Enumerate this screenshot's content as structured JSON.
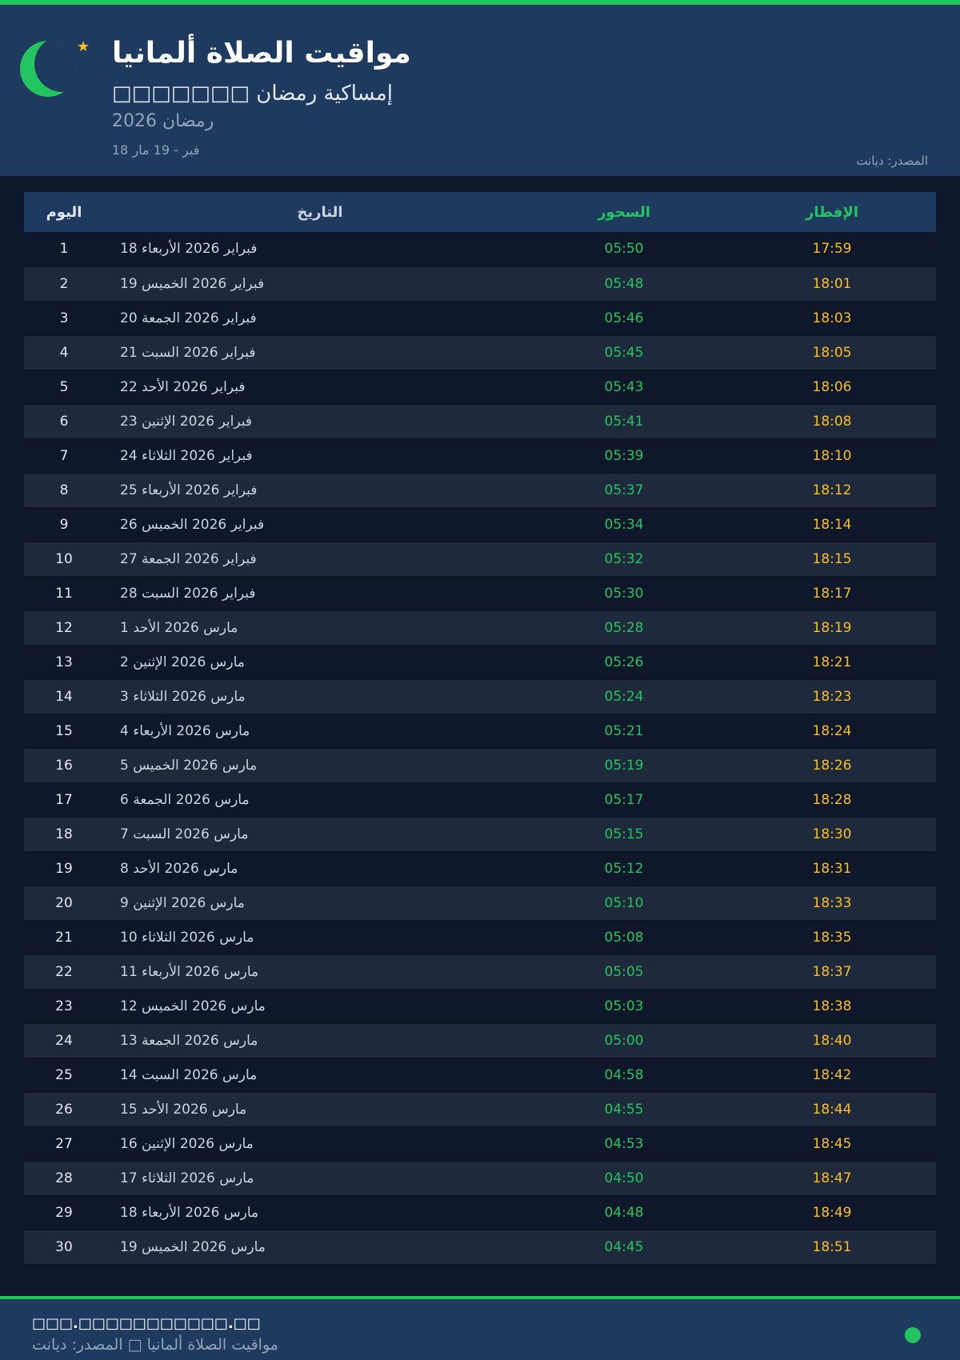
{
  "header": {
    "title": "مواقيت الصلاة ألمانيا",
    "subtitle": "□□□□□□□ إمساكية رمضان",
    "year": "رمضان 2026",
    "range": "18 فبر - 19 مار",
    "source": "المصدر: ديانت",
    "icons": [
      "crescent-moon-icon",
      "star-icon"
    ]
  },
  "colors": {
    "accent": "#22c55e",
    "iftar": "#fbbf24",
    "header_bg": "#1e3a5f",
    "page_bg": "#0f172a"
  },
  "table": {
    "headers": {
      "day": "اليوم",
      "date": "التاريخ",
      "suhoor": "السحور",
      "iftar": "الإفطار"
    },
    "rows": [
      [
        "1",
        "18 فبراير 2026 الأربعاء",
        "05:50",
        "17:59"
      ],
      [
        "2",
        "19 فبراير 2026 الخميس",
        "05:48",
        "18:01"
      ],
      [
        "3",
        "20 فبراير 2026 الجمعة",
        "05:46",
        "18:03"
      ],
      [
        "4",
        "21 فبراير 2026 السبت",
        "05:45",
        "18:05"
      ],
      [
        "5",
        "22 فبراير 2026 الأحد",
        "05:43",
        "18:06"
      ],
      [
        "6",
        "23 فبراير 2026 الإثنين",
        "05:41",
        "18:08"
      ],
      [
        "7",
        "24 فبراير 2026 الثلاثاء",
        "05:39",
        "18:10"
      ],
      [
        "8",
        "25 فبراير 2026 الأربعاء",
        "05:37",
        "18:12"
      ],
      [
        "9",
        "26 فبراير 2026 الخميس",
        "05:34",
        "18:14"
      ],
      [
        "10",
        "27 فبراير 2026 الجمعة",
        "05:32",
        "18:15"
      ],
      [
        "11",
        "28 فبراير 2026 السبت",
        "05:30",
        "18:17"
      ],
      [
        "12",
        "1 مارس 2026 الأحد",
        "05:28",
        "18:19"
      ],
      [
        "13",
        "2 مارس 2026 الإثنين",
        "05:26",
        "18:21"
      ],
      [
        "14",
        "3 مارس 2026 الثلاثاء",
        "05:24",
        "18:23"
      ],
      [
        "15",
        "4 مارس 2026 الأربعاء",
        "05:21",
        "18:24"
      ],
      [
        "16",
        "5 مارس 2026 الخميس",
        "05:19",
        "18:26"
      ],
      [
        "17",
        "6 مارس 2026 الجمعة",
        "05:17",
        "18:28"
      ],
      [
        "18",
        "7 مارس 2026 السبت",
        "05:15",
        "18:30"
      ],
      [
        "19",
        "8 مارس 2026 الأحد",
        "05:12",
        "18:31"
      ],
      [
        "20",
        "9 مارس 2026 الإثنين",
        "05:10",
        "18:33"
      ],
      [
        "21",
        "10 مارس 2026 الثلاثاء",
        "05:08",
        "18:35"
      ],
      [
        "22",
        "11 مارس 2026 الأربعاء",
        "05:05",
        "18:37"
      ],
      [
        "23",
        "12 مارس 2026 الخميس",
        "05:03",
        "18:38"
      ],
      [
        "24",
        "13 مارس 2026 الجمعة",
        "05:00",
        "18:40"
      ],
      [
        "25",
        "14 مارس 2026 السبت",
        "04:58",
        "18:42"
      ],
      [
        "26",
        "15 مارس 2026 الأحد",
        "04:55",
        "18:44"
      ],
      [
        "27",
        "16 مارس 2026 الإثنين",
        "04:53",
        "18:45"
      ],
      [
        "28",
        "17 مارس 2026 الثلاثاء",
        "04:50",
        "18:47"
      ],
      [
        "29",
        "18 مارس 2026 الأربعاء",
        "04:48",
        "18:49"
      ],
      [
        "30",
        "19 مارس 2026 الخميس",
        "04:45",
        "18:51"
      ]
    ]
  },
  "footer": {
    "website": "□□□.□□□□□□□□□□□.□□",
    "line": "مواقيت الصلاة ألمانيا □ المصدر: ديانت"
  }
}
